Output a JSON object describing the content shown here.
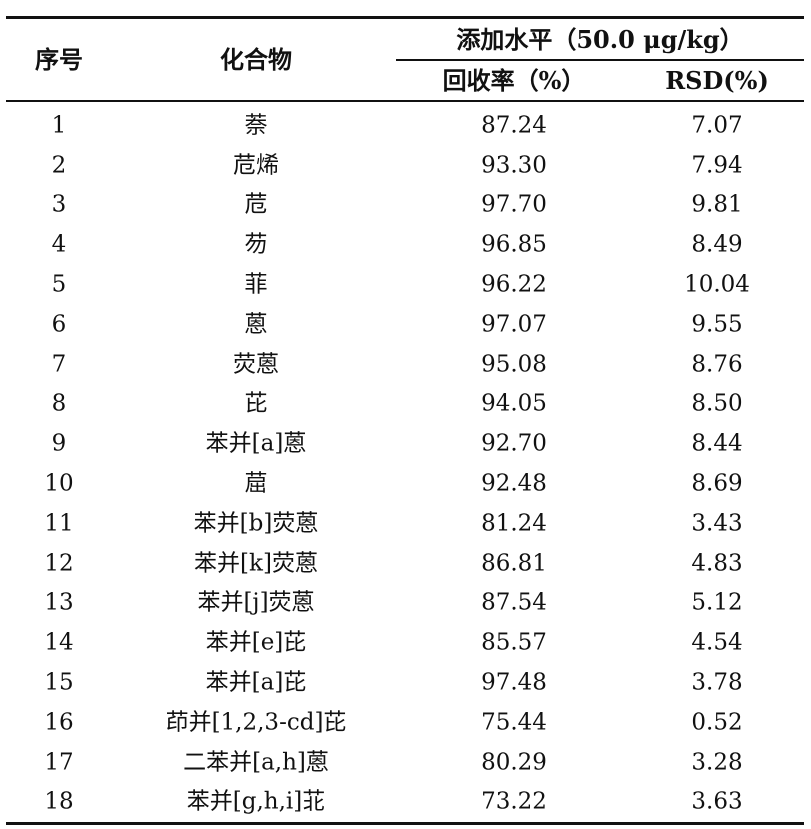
{
  "table": {
    "header": {
      "seq": "序号",
      "compound": "化合物",
      "level": "添加水平（50.0 μg/kg）",
      "recovery": "回收率（%）",
      "rsd": "RSD(%)"
    },
    "rows": [
      {
        "seq": "1",
        "compound": "萘",
        "recovery": "87.24",
        "rsd": "7.07"
      },
      {
        "seq": "2",
        "compound": "苊烯",
        "recovery": "93.30",
        "rsd": "7.94"
      },
      {
        "seq": "3",
        "compound": "苊",
        "recovery": "97.70",
        "rsd": "9.81"
      },
      {
        "seq": "4",
        "compound": "芴",
        "recovery": "96.85",
        "rsd": "8.49"
      },
      {
        "seq": "5",
        "compound": "菲",
        "recovery": "96.22",
        "rsd": "10.04"
      },
      {
        "seq": "6",
        "compound": "蒽",
        "recovery": "97.07",
        "rsd": "9.55"
      },
      {
        "seq": "7",
        "compound": "荧蒽",
        "recovery": "95.08",
        "rsd": "8.76"
      },
      {
        "seq": "8",
        "compound": "芘",
        "recovery": "94.05",
        "rsd": "8.50"
      },
      {
        "seq": "9",
        "compound": "苯并[a]蒽",
        "recovery": "92.70",
        "rsd": "8.44"
      },
      {
        "seq": "10",
        "compound": "䓛",
        "recovery": "92.48",
        "rsd": "8.69"
      },
      {
        "seq": "11",
        "compound": "苯并[b]荧蒽",
        "recovery": "81.24",
        "rsd": "3.43"
      },
      {
        "seq": "12",
        "compound": "苯并[k]荧蒽",
        "recovery": "86.81",
        "rsd": "4.83"
      },
      {
        "seq": "13",
        "compound": "苯并[j]荧蒽",
        "recovery": "87.54",
        "rsd": "5.12"
      },
      {
        "seq": "14",
        "compound": "苯并[e]芘",
        "recovery": "85.57",
        "rsd": "4.54"
      },
      {
        "seq": "15",
        "compound": "苯并[a]芘",
        "recovery": "97.48",
        "rsd": "3.78"
      },
      {
        "seq": "16",
        "compound": "茚并[1,2,3-cd]芘",
        "recovery": "75.44",
        "rsd": "0.52"
      },
      {
        "seq": "17",
        "compound": "二苯并[a,h]蒽",
        "recovery": "80.29",
        "rsd": "3.28"
      },
      {
        "seq": "18",
        "compound": "苯并[g,h,i]苝",
        "recovery": "73.22",
        "rsd": "3.63"
      }
    ]
  }
}
